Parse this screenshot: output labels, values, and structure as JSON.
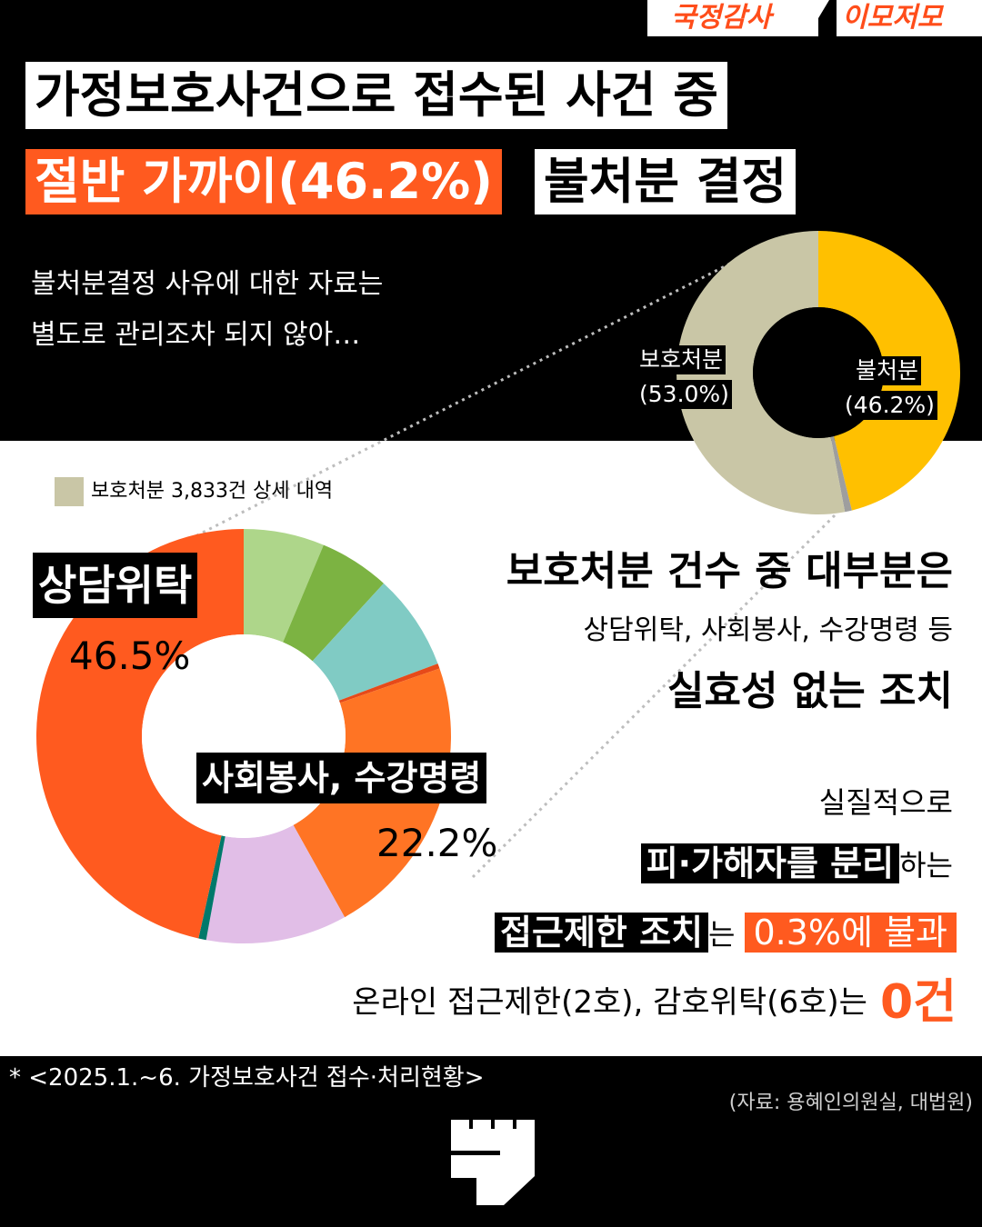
{
  "tags": {
    "left": "국정감사",
    "right": "이모저모"
  },
  "headline": {
    "line1": "가정보호사건으로 접수된 사건 중",
    "highlight": "절반 가까이(46.2%)",
    "line2_end": "불처분 결정"
  },
  "subtext": {
    "line1": "불처분결정 사유에 대한 자료는",
    "line2": "별도로 관리조차 되지 않아…"
  },
  "legend_label": "보호처분 3,833건 상세 내역",
  "body": {
    "line1": "보호처분 건수 중 대부분은",
    "line2": "상담위탁, 사회봉사, 수강명령 등",
    "line3": "실효성 없는 조치",
    "line4": "실질적으로",
    "line5_highlight": "피·가해자를 분리",
    "line5_rest": "하는",
    "line6_highlight": "접근제한 조치",
    "line6_mid": "는",
    "line6_orange": "0.3%에 불과",
    "line7_text": "온라인 접근제한(2호), 감호위탁(6호)는",
    "line7_value": "0건"
  },
  "footnote": "* <2025.1.~6. 가정보호사건 접수·처리현황>",
  "source": "(자료: 용혜인의원실, 대법원)",
  "colors": {
    "accent_orange": "#ff5a1f",
    "beige": "#c9c6a6",
    "yellow": "#ffc000",
    "gray": "#9e9e9e"
  },
  "chart_data": [
    {
      "type": "pie",
      "title": "",
      "slices": [
        {
          "label": "불처분",
          "pct_label": "(46.2%)",
          "value": 46.2,
          "color": "#ffc000"
        },
        {
          "label": "",
          "value": 0.8,
          "color": "#9e9e9e"
        },
        {
          "label": "보호처분",
          "pct_label": "(53.0%)",
          "value": 53.0,
          "color": "#c9c6a6"
        }
      ]
    },
    {
      "type": "pie",
      "title": "보호처분 3,833건 상세 내역",
      "slices": [
        {
          "label": "",
          "value": 6.3,
          "color": "#aed68a"
        },
        {
          "label": "",
          "value": 5.5,
          "color": "#7cb342"
        },
        {
          "label": "",
          "value": 7.5,
          "color": "#80cbc4"
        },
        {
          "label": "",
          "value": 0.4,
          "color": "#e64a19"
        },
        {
          "label": "사회봉사, 수강명령",
          "pct_label": "22.2%",
          "value": 22.2,
          "color": "#ff7424"
        },
        {
          "label": "",
          "value": 11.0,
          "color": "#e1bee7"
        },
        {
          "label": "",
          "value": 0.6,
          "color": "#00796b"
        },
        {
          "label": "상담위탁",
          "pct_label": "46.5%",
          "value": 46.5,
          "color": "#ff5a1f"
        }
      ]
    }
  ]
}
